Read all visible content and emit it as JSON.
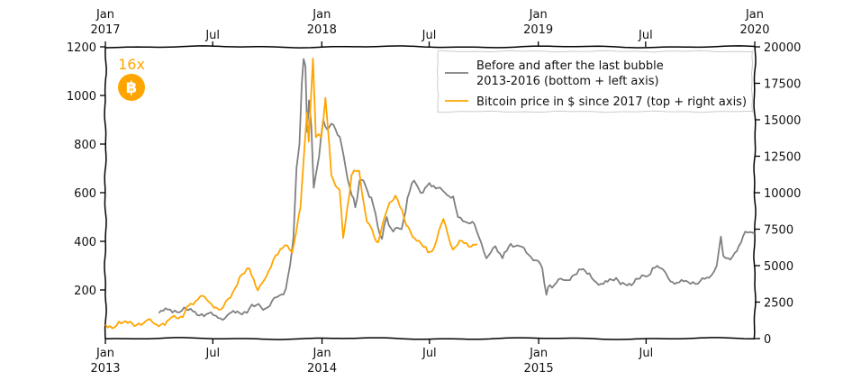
{
  "chart_data": {
    "type": "line",
    "legend_position": "top-right",
    "grid": false,
    "bottom_axis": {
      "ticks": [
        {
          "label": "Jan",
          "sublabel": "2013",
          "date": "2013-01-01"
        },
        {
          "label": "Jul",
          "sublabel": "",
          "date": "2013-07-01"
        },
        {
          "label": "Jan",
          "sublabel": "2014",
          "date": "2014-01-01"
        },
        {
          "label": "Jul",
          "sublabel": "",
          "date": "2014-07-01"
        },
        {
          "label": "Jan",
          "sublabel": "2015",
          "date": "2015-01-01"
        },
        {
          "label": "Jul",
          "sublabel": "",
          "date": "2015-07-01"
        }
      ],
      "range": [
        "2013-01-01",
        "2015-12-31"
      ]
    },
    "top_axis": {
      "ticks": [
        {
          "label": "Jan",
          "sublabel": "2017",
          "date": "2017-01-01"
        },
        {
          "label": "Jul",
          "sublabel": "",
          "date": "2017-07-01"
        },
        {
          "label": "Jan",
          "sublabel": "2018",
          "date": "2018-01-01"
        },
        {
          "label": "Jul",
          "sublabel": "",
          "date": "2018-07-01"
        },
        {
          "label": "Jan",
          "sublabel": "2019",
          "date": "2019-01-01"
        },
        {
          "label": "Jul",
          "sublabel": "",
          "date": "2019-07-01"
        },
        {
          "label": "Jan",
          "sublabel": "2020",
          "date": "2020-01-01"
        }
      ],
      "range": [
        "2017-01-01",
        "2020-01-01"
      ]
    },
    "left_axis": {
      "ticks": [
        200,
        400,
        600,
        800,
        1000,
        1200
      ],
      "range": [
        0,
        1200
      ]
    },
    "right_axis": {
      "ticks": [
        0,
        2500,
        5000,
        7500,
        10000,
        12500,
        15000,
        17500,
        20000
      ],
      "range": [
        0,
        20000
      ]
    },
    "series": [
      {
        "name": "Before and after the last bubble",
        "name_line2": "2013-2016 (bottom + left axis)",
        "axes": "bottom-left",
        "color": "#808080",
        "points": [
          [
            "2013-04-01",
            105
          ],
          [
            "2013-04-20",
            120
          ],
          [
            "2013-05-10",
            115
          ],
          [
            "2013-06-01",
            110
          ],
          [
            "2013-06-20",
            100
          ],
          [
            "2013-07-10",
            85
          ],
          [
            "2013-07-25",
            95
          ],
          [
            "2013-08-15",
            105
          ],
          [
            "2013-09-01",
            125
          ],
          [
            "2013-09-20",
            130
          ],
          [
            "2013-10-05",
            135
          ],
          [
            "2013-10-20",
            175
          ],
          [
            "2013-11-01",
            205
          ],
          [
            "2013-11-08",
            300
          ],
          [
            "2013-11-14",
            420
          ],
          [
            "2013-11-19",
            700
          ],
          [
            "2013-11-24",
            800
          ],
          [
            "2013-11-28",
            1050
          ],
          [
            "2013-12-01",
            1150
          ],
          [
            "2013-12-04",
            1120
          ],
          [
            "2013-12-07",
            850
          ],
          [
            "2013-12-10",
            980
          ],
          [
            "2013-12-14",
            870
          ],
          [
            "2013-12-18",
            620
          ],
          [
            "2013-12-22",
            680
          ],
          [
            "2013-12-27",
            750
          ],
          [
            "2014-01-03",
            900
          ],
          [
            "2014-01-10",
            860
          ],
          [
            "2014-01-20",
            880
          ],
          [
            "2014-01-31",
            830
          ],
          [
            "2014-02-10",
            700
          ],
          [
            "2014-02-20",
            590
          ],
          [
            "2014-02-26",
            540
          ],
          [
            "2014-03-05",
            650
          ],
          [
            "2014-03-15",
            630
          ],
          [
            "2014-03-25",
            580
          ],
          [
            "2014-04-05",
            460
          ],
          [
            "2014-04-12",
            410
          ],
          [
            "2014-04-20",
            500
          ],
          [
            "2014-05-01",
            440
          ],
          [
            "2014-05-15",
            450
          ],
          [
            "2014-05-25",
            580
          ],
          [
            "2014-06-05",
            650
          ],
          [
            "2014-06-20",
            600
          ],
          [
            "2014-07-01",
            640
          ],
          [
            "2014-07-15",
            620
          ],
          [
            "2014-07-31",
            590
          ],
          [
            "2014-08-10",
            585
          ],
          [
            "2014-08-18",
            500
          ],
          [
            "2014-08-31",
            480
          ],
          [
            "2014-09-15",
            470
          ],
          [
            "2014-09-22",
            420
          ],
          [
            "2014-10-05",
            330
          ],
          [
            "2014-10-20",
            380
          ],
          [
            "2014-11-01",
            330
          ],
          [
            "2014-11-15",
            390
          ],
          [
            "2014-11-30",
            380
          ],
          [
            "2014-12-15",
            345
          ],
          [
            "2014-12-31",
            320
          ],
          [
            "2015-01-07",
            290
          ],
          [
            "2015-01-14",
            180
          ],
          [
            "2015-01-20",
            220
          ],
          [
            "2015-01-31",
            230
          ],
          [
            "2015-02-15",
            240
          ],
          [
            "2015-03-10",
            285
          ],
          [
            "2015-03-31",
            250
          ],
          [
            "2015-04-20",
            225
          ],
          [
            "2015-05-15",
            238
          ],
          [
            "2015-06-10",
            228
          ],
          [
            "2015-07-01",
            255
          ],
          [
            "2015-07-12",
            290
          ],
          [
            "2015-07-31",
            280
          ],
          [
            "2015-08-18",
            225
          ],
          [
            "2015-09-10",
            232
          ],
          [
            "2015-09-30",
            236
          ],
          [
            "2015-10-15",
            250
          ],
          [
            "2015-10-28",
            300
          ],
          [
            "2015-11-04",
            420
          ],
          [
            "2015-11-08",
            340
          ],
          [
            "2015-11-20",
            325
          ],
          [
            "2015-12-01",
            360
          ],
          [
            "2015-12-15",
            440
          ],
          [
            "2015-12-31",
            430
          ]
        ]
      },
      {
        "name": "Bitcoin price in $ since 2017 (top + right axis)",
        "axes": "top-right",
        "color": "#ffa500",
        "points": [
          [
            "2017-01-01",
            960
          ],
          [
            "2017-01-20",
            900
          ],
          [
            "2017-02-15",
            1050
          ],
          [
            "2017-03-10",
            1200
          ],
          [
            "2017-03-25",
            1000
          ],
          [
            "2017-04-15",
            1200
          ],
          [
            "2017-05-01",
            1400
          ],
          [
            "2017-05-15",
            1800
          ],
          [
            "2017-05-25",
            2400
          ],
          [
            "2017-06-10",
            2900
          ],
          [
            "2017-06-25",
            2500
          ],
          [
            "2017-07-15",
            2000
          ],
          [
            "2017-07-31",
            2800
          ],
          [
            "2017-08-15",
            4200
          ],
          [
            "2017-09-01",
            4800
          ],
          [
            "2017-09-15",
            3300
          ],
          [
            "2017-09-30",
            4300
          ],
          [
            "2017-10-15",
            5700
          ],
          [
            "2017-10-31",
            6400
          ],
          [
            "2017-11-12",
            5900
          ],
          [
            "2017-11-26",
            9000
          ],
          [
            "2017-12-07",
            15500
          ],
          [
            "2017-12-10",
            13500
          ],
          [
            "2017-12-17",
            19200
          ],
          [
            "2017-12-22",
            13800
          ],
          [
            "2017-12-31",
            13800
          ],
          [
            "2018-01-07",
            16500
          ],
          [
            "2018-01-17",
            11200
          ],
          [
            "2018-01-31",
            10200
          ],
          [
            "2018-02-06",
            6900
          ],
          [
            "2018-02-20",
            11200
          ],
          [
            "2018-03-05",
            11500
          ],
          [
            "2018-03-18",
            8000
          ],
          [
            "2018-03-31",
            6900
          ],
          [
            "2018-04-06",
            6600
          ],
          [
            "2018-04-25",
            9300
          ],
          [
            "2018-05-05",
            9800
          ],
          [
            "2018-05-20",
            8200
          ],
          [
            "2018-06-10",
            6700
          ],
          [
            "2018-06-29",
            5900
          ],
          [
            "2018-07-10",
            6300
          ],
          [
            "2018-07-25",
            8200
          ],
          [
            "2018-08-10",
            6100
          ],
          [
            "2018-08-25",
            6700
          ],
          [
            "2018-09-10",
            6300
          ],
          [
            "2018-09-20",
            6500
          ]
        ]
      }
    ],
    "annotation": {
      "text": "16x",
      "color": "#ffa500"
    },
    "coin_symbol": "฿"
  }
}
